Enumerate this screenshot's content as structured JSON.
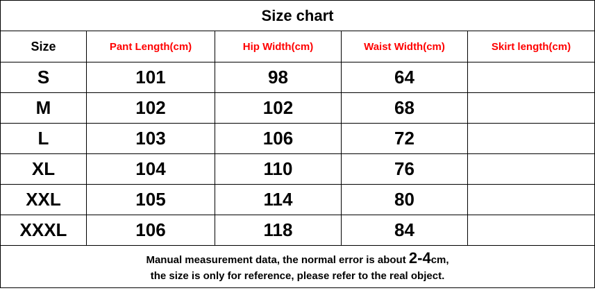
{
  "title": "Size chart",
  "columns": [
    "Size",
    "Pant Length(cm)",
    "Hip Width(cm)",
    "Waist Width(cm)",
    "Skirt length(cm)"
  ],
  "rows": [
    [
      "S",
      "101",
      "98",
      "64",
      ""
    ],
    [
      "M",
      "102",
      "102",
      "68",
      ""
    ],
    [
      "L",
      "103",
      "106",
      "72",
      ""
    ],
    [
      "XL",
      "104",
      "110",
      "76",
      ""
    ],
    [
      "XXL",
      "105",
      "114",
      "80",
      ""
    ],
    [
      "XXXL",
      "106",
      "118",
      "84",
      ""
    ]
  ],
  "footer": {
    "line1_prefix": "Manual measurement data, the normal error is about ",
    "line1_range": "2-4",
    "line1_suffix": "cm,",
    "line2": "the size is only for reference, please refer to the real object."
  },
  "colors": {
    "header_text": "#ff0000",
    "text": "#000000",
    "border": "#000000"
  }
}
